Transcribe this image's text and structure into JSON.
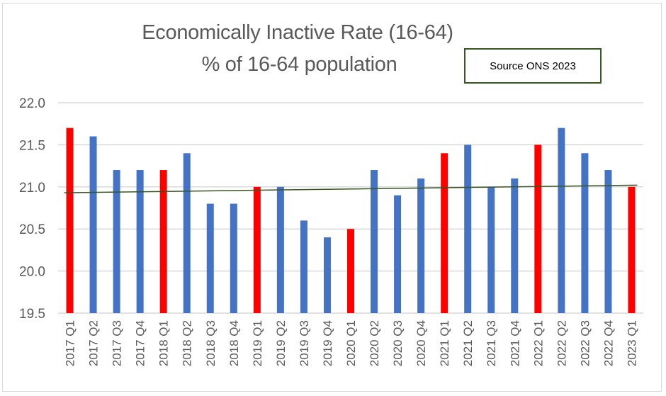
{
  "chart_data": {
    "type": "bar",
    "title": "Economically Inactive Rate (16-64)",
    "subtitle": "% of 16-64 population",
    "annotation": "Source ONS 2023",
    "xlabel": "",
    "ylabel": "",
    "ylim": [
      19.5,
      22.0
    ],
    "yticks": [
      "19.5",
      "20.0",
      "20.5",
      "21.0",
      "21.5",
      "22.0"
    ],
    "grid": true,
    "legend": "none",
    "categories": [
      "2017 Q1",
      "2017 Q2",
      "2017 Q3",
      "2017 Q4",
      "2018 Q1",
      "2018 Q2",
      "2018 Q3",
      "2018 Q4",
      "2019 Q1",
      "2019 Q2",
      "2019 Q3",
      "2019 Q4",
      "2020 Q1",
      "2020 Q2",
      "2020 Q3",
      "2020 Q4",
      "2021 Q1",
      "2021 Q2",
      "2021 Q3",
      "2021 Q4",
      "2022 Q1",
      "2022 Q2",
      "2022 Q3",
      "2022 Q4",
      "2023 Q1"
    ],
    "values": [
      21.7,
      21.6,
      21.2,
      21.2,
      21.2,
      21.4,
      20.8,
      20.8,
      21.0,
      21.0,
      20.6,
      20.4,
      20.5,
      21.2,
      20.9,
      21.1,
      21.4,
      21.5,
      21.0,
      21.1,
      21.5,
      21.7,
      21.4,
      21.2,
      21.0
    ],
    "highlight_color": "#ff0000",
    "bar_color": "#4472c4",
    "highlighted_categories": [
      "2017 Q1",
      "2018 Q1",
      "2019 Q1",
      "2020 Q1",
      "2021 Q1",
      "2022 Q1",
      "2023 Q1"
    ],
    "trendline": {
      "type": "linear",
      "color": "#375623",
      "start": 20.93,
      "end": 21.02
    }
  }
}
